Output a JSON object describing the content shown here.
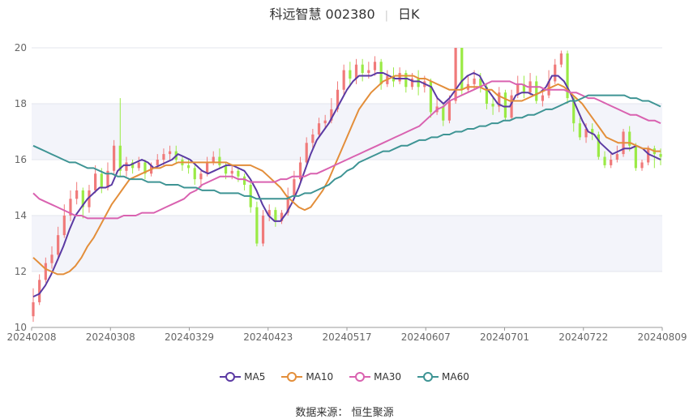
{
  "title": {
    "main": "科远智慧 002380",
    "period": "日K"
  },
  "source": {
    "label": "数据来源：",
    "value": "恒生聚源"
  },
  "colors": {
    "up": "#f07a7a",
    "down": "#9aea45",
    "MA5": "#5b3aa3",
    "MA10": "#e38e3a",
    "MA30": "#d962b0",
    "MA60": "#3e9494"
  },
  "chart_data": {
    "type": "candlestick",
    "ylim": [
      10,
      20
    ],
    "yticks": [
      10,
      12,
      14,
      16,
      18,
      20
    ],
    "xticks": [
      "20240208",
      "20240308",
      "20240329",
      "20240423",
      "20240517",
      "20240607",
      "20240701",
      "20240722",
      "20240809"
    ],
    "grid": true,
    "legend_position": "bottom",
    "candles": [
      [
        10.4,
        10.9,
        11.4,
        10.2
      ],
      [
        10.9,
        11.7,
        11.9,
        10.8
      ],
      [
        11.7,
        12.3,
        12.5,
        11.6
      ],
      [
        12.3,
        12.6,
        12.9,
        12.1
      ],
      [
        12.6,
        13.3,
        13.6,
        12.4
      ],
      [
        13.3,
        14.0,
        14.4,
        13.2
      ],
      [
        14.0,
        14.6,
        14.9,
        13.8
      ],
      [
        14.6,
        14.9,
        15.2,
        14.4
      ],
      [
        14.9,
        14.3,
        15.0,
        13.9
      ],
      [
        14.3,
        14.9,
        15.1,
        14.1
      ],
      [
        14.9,
        15.5,
        15.8,
        14.8
      ],
      [
        15.5,
        15.0,
        15.7,
        14.8
      ],
      [
        15.0,
        15.6,
        15.9,
        14.9
      ],
      [
        15.6,
        16.5,
        16.7,
        15.5
      ],
      [
        16.5,
        15.6,
        18.2,
        15.4
      ],
      [
        15.6,
        15.9,
        16.1,
        15.4
      ],
      [
        15.9,
        15.7,
        16.0,
        15.5
      ],
      [
        15.7,
        15.9,
        16.1,
        15.6
      ],
      [
        15.9,
        15.5,
        16.0,
        15.3
      ],
      [
        15.5,
        15.8,
        15.9,
        15.4
      ],
      [
        15.8,
        16.0,
        16.2,
        15.7
      ],
      [
        16.0,
        16.2,
        16.4,
        15.8
      ],
      [
        16.2,
        16.3,
        16.5,
        16.0
      ],
      [
        16.3,
        16.0,
        16.5,
        15.9
      ],
      [
        16.0,
        15.8,
        16.1,
        15.6
      ],
      [
        15.8,
        15.7,
        16.0,
        15.5
      ],
      [
        15.7,
        15.3,
        15.8,
        15.1
      ],
      [
        15.3,
        15.5,
        15.6,
        15.0
      ],
      [
        15.5,
        15.9,
        16.1,
        15.4
      ],
      [
        15.9,
        16.1,
        16.3,
        15.8
      ],
      [
        16.1,
        15.8,
        16.4,
        15.7
      ],
      [
        15.8,
        15.5,
        15.9,
        15.3
      ],
      [
        15.5,
        15.6,
        15.8,
        15.3
      ],
      [
        15.6,
        15.4,
        15.7,
        15.2
      ],
      [
        15.4,
        15.1,
        15.5,
        14.9
      ],
      [
        15.1,
        14.3,
        15.2,
        14.1
      ],
      [
        14.3,
        13.0,
        14.5,
        12.9
      ],
      [
        13.0,
        14.0,
        14.2,
        12.9
      ],
      [
        14.0,
        14.2,
        14.4,
        13.8
      ],
      [
        14.2,
        13.8,
        14.3,
        13.6
      ],
      [
        13.8,
        14.1,
        14.2,
        13.7
      ],
      [
        14.1,
        14.7,
        15.0,
        14.0
      ],
      [
        14.7,
        15.3,
        15.6,
        14.6
      ],
      [
        15.3,
        15.9,
        16.1,
        15.2
      ],
      [
        15.9,
        16.6,
        16.8,
        15.8
      ],
      [
        16.6,
        16.9,
        17.1,
        16.4
      ],
      [
        16.9,
        17.3,
        17.5,
        16.8
      ],
      [
        17.3,
        17.4,
        17.6,
        17.1
      ],
      [
        17.4,
        17.8,
        18.2,
        17.3
      ],
      [
        17.8,
        18.5,
        18.8,
        17.7
      ],
      [
        18.5,
        19.2,
        19.4,
        18.3
      ],
      [
        19.2,
        18.9,
        19.5,
        18.6
      ],
      [
        18.9,
        19.4,
        19.6,
        18.7
      ],
      [
        19.4,
        19.1,
        19.6,
        18.8
      ],
      [
        19.1,
        19.2,
        19.5,
        18.9
      ],
      [
        19.2,
        19.5,
        19.7,
        19.0
      ],
      [
        19.5,
        18.7,
        19.6,
        18.5
      ],
      [
        18.7,
        19.0,
        19.2,
        18.6
      ],
      [
        19.0,
        18.8,
        19.3,
        18.6
      ],
      [
        18.8,
        19.1,
        19.3,
        18.7
      ],
      [
        19.1,
        18.6,
        19.2,
        18.4
      ],
      [
        18.6,
        18.9,
        19.1,
        18.5
      ],
      [
        18.9,
        18.6,
        19.2,
        18.3
      ],
      [
        18.6,
        18.8,
        19.0,
        18.4
      ],
      [
        18.8,
        17.7,
        18.9,
        17.5
      ],
      [
        17.7,
        17.9,
        18.2,
        17.6
      ],
      [
        17.9,
        17.4,
        18.0,
        17.2
      ],
      [
        17.4,
        18.1,
        18.3,
        17.3
      ],
      [
        18.1,
        20.0,
        20.0,
        18.0
      ],
      [
        20.0,
        18.5,
        20.0,
        18.3
      ],
      [
        18.5,
        18.7,
        19.0,
        18.4
      ],
      [
        18.7,
        18.9,
        19.2,
        18.5
      ],
      [
        18.9,
        18.6,
        19.1,
        18.4
      ],
      [
        18.6,
        18.0,
        18.7,
        17.8
      ],
      [
        18.0,
        17.9,
        18.2,
        17.6
      ],
      [
        17.9,
        18.4,
        18.6,
        17.7
      ],
      [
        18.4,
        17.5,
        18.5,
        17.4
      ],
      [
        17.5,
        18.3,
        18.5,
        17.4
      ],
      [
        18.3,
        18.7,
        19.0,
        18.2
      ],
      [
        18.7,
        18.4,
        19.0,
        18.2
      ],
      [
        18.4,
        18.8,
        19.1,
        18.3
      ],
      [
        18.8,
        18.1,
        19.0,
        18.0
      ],
      [
        18.1,
        18.3,
        18.5,
        17.9
      ],
      [
        18.3,
        18.8,
        19.2,
        18.2
      ],
      [
        18.8,
        19.4,
        19.6,
        18.7
      ],
      [
        19.4,
        19.8,
        19.9,
        19.3
      ],
      [
        19.8,
        18.2,
        19.9,
        18.0
      ],
      [
        18.2,
        17.3,
        18.3,
        17.0
      ],
      [
        17.3,
        16.8,
        17.5,
        16.7
      ],
      [
        16.8,
        17.1,
        17.3,
        16.6
      ],
      [
        17.1,
        16.9,
        17.3,
        16.7
      ],
      [
        16.9,
        16.1,
        17.0,
        16.0
      ],
      [
        16.1,
        15.8,
        16.3,
        15.7
      ],
      [
        15.8,
        16.0,
        16.2,
        15.7
      ],
      [
        16.0,
        16.2,
        16.5,
        15.9
      ],
      [
        16.2,
        17.0,
        17.1,
        16.1
      ],
      [
        17.0,
        16.5,
        17.2,
        16.3
      ],
      [
        16.5,
        15.7,
        16.6,
        15.6
      ],
      [
        15.7,
        15.9,
        16.0,
        15.6
      ],
      [
        15.9,
        16.4,
        16.5,
        15.8
      ],
      [
        16.4,
        16.2,
        16.5,
        15.7
      ],
      [
        16.2,
        16.1,
        16.4,
        15.8
      ]
    ],
    "series": [
      {
        "name": "MA5",
        "values": [
          11.1,
          11.2,
          11.5,
          11.9,
          12.4,
          12.9,
          13.5,
          14.0,
          14.3,
          14.6,
          14.8,
          15.0,
          15.0,
          15.1,
          15.6,
          15.8,
          15.8,
          15.9,
          16.0,
          15.9,
          15.7,
          15.8,
          15.9,
          16.0,
          16.2,
          16.1,
          16.0,
          15.8,
          15.6,
          15.5,
          15.6,
          15.7,
          15.8,
          15.8,
          15.7,
          15.6,
          15.3,
          14.9,
          14.4,
          14.0,
          13.8,
          13.8,
          14.1,
          14.5,
          15.0,
          15.6,
          16.2,
          16.7,
          17.0,
          17.3,
          17.7,
          18.1,
          18.5,
          18.8,
          19.0,
          19.0,
          19.0,
          19.1,
          19.1,
          19.0,
          18.9,
          18.9,
          18.9,
          18.8,
          18.8,
          18.7,
          18.6,
          18.2,
          18.0,
          18.2,
          18.5,
          18.8,
          19.0,
          19.1,
          19.0,
          18.6,
          18.3,
          18.0,
          17.9,
          17.9,
          18.3,
          18.4,
          18.4,
          18.3,
          18.4,
          18.6,
          19.0,
          19.0,
          18.8,
          18.4,
          17.9,
          17.4,
          17.0,
          16.9,
          16.6,
          16.4,
          16.2,
          16.3,
          16.4,
          16.4,
          16.5,
          16.4,
          16.2,
          16.1,
          16.0
        ]
      },
      {
        "name": "MA10",
        "values": [
          12.5,
          12.3,
          12.1,
          12.0,
          11.9,
          11.9,
          12.0,
          12.2,
          12.5,
          12.9,
          13.2,
          13.6,
          14.0,
          14.4,
          14.7,
          15.0,
          15.3,
          15.4,
          15.5,
          15.6,
          15.7,
          15.7,
          15.8,
          15.8,
          15.9,
          15.9,
          15.9,
          15.9,
          15.9,
          15.9,
          15.9,
          15.9,
          15.9,
          15.8,
          15.8,
          15.8,
          15.8,
          15.7,
          15.6,
          15.4,
          15.2,
          15.0,
          14.7,
          14.5,
          14.3,
          14.2,
          14.3,
          14.6,
          14.9,
          15.3,
          15.8,
          16.3,
          16.8,
          17.3,
          17.8,
          18.1,
          18.4,
          18.6,
          18.8,
          18.9,
          19.0,
          19.0,
          19.0,
          19.0,
          18.9,
          18.9,
          18.8,
          18.7,
          18.6,
          18.5,
          18.5,
          18.5,
          18.6,
          18.6,
          18.6,
          18.5,
          18.5,
          18.3,
          18.2,
          18.1,
          18.1,
          18.1,
          18.2,
          18.3,
          18.4,
          18.5,
          18.6,
          18.7,
          18.6,
          18.4,
          18.2,
          18.0,
          17.7,
          17.4,
          17.1,
          16.8,
          16.7,
          16.6,
          16.6,
          16.6,
          16.5,
          16.4,
          16.4,
          16.3,
          16.3
        ]
      },
      {
        "name": "MA30",
        "values": [
          14.8,
          14.6,
          14.5,
          14.4,
          14.3,
          14.2,
          14.1,
          14.0,
          14.0,
          13.9,
          13.9,
          13.9,
          13.9,
          13.9,
          13.9,
          14.0,
          14.0,
          14.0,
          14.1,
          14.1,
          14.1,
          14.2,
          14.3,
          14.4,
          14.5,
          14.6,
          14.8,
          14.9,
          15.1,
          15.2,
          15.3,
          15.4,
          15.4,
          15.4,
          15.3,
          15.3,
          15.2,
          15.2,
          15.2,
          15.2,
          15.2,
          15.3,
          15.3,
          15.4,
          15.4,
          15.4,
          15.5,
          15.5,
          15.6,
          15.7,
          15.8,
          15.9,
          16.0,
          16.1,
          16.2,
          16.3,
          16.4,
          16.5,
          16.6,
          16.7,
          16.8,
          16.9,
          17.0,
          17.1,
          17.2,
          17.4,
          17.6,
          17.8,
          17.9,
          18.1,
          18.2,
          18.3,
          18.4,
          18.5,
          18.6,
          18.7,
          18.8,
          18.8,
          18.8,
          18.8,
          18.7,
          18.7,
          18.6,
          18.6,
          18.6,
          18.5,
          18.5,
          18.5,
          18.5,
          18.4,
          18.4,
          18.3,
          18.2,
          18.2,
          18.1,
          18.0,
          17.9,
          17.8,
          17.7,
          17.6,
          17.6,
          17.5,
          17.4,
          17.4,
          17.3
        ]
      },
      {
        "name": "MA60",
        "values": [
          16.5,
          16.4,
          16.3,
          16.2,
          16.1,
          16.0,
          15.9,
          15.9,
          15.8,
          15.7,
          15.7,
          15.6,
          15.5,
          15.5,
          15.4,
          15.4,
          15.3,
          15.3,
          15.3,
          15.2,
          15.2,
          15.2,
          15.1,
          15.1,
          15.1,
          15.0,
          15.0,
          15.0,
          14.9,
          14.9,
          14.9,
          14.8,
          14.8,
          14.8,
          14.8,
          14.7,
          14.7,
          14.6,
          14.6,
          14.6,
          14.6,
          14.6,
          14.6,
          14.7,
          14.7,
          14.8,
          14.8,
          14.9,
          15.0,
          15.1,
          15.3,
          15.4,
          15.6,
          15.7,
          15.9,
          16.0,
          16.1,
          16.2,
          16.3,
          16.3,
          16.4,
          16.5,
          16.5,
          16.6,
          16.7,
          16.7,
          16.8,
          16.8,
          16.9,
          16.9,
          17.0,
          17.0,
          17.1,
          17.1,
          17.2,
          17.2,
          17.3,
          17.3,
          17.4,
          17.4,
          17.5,
          17.5,
          17.6,
          17.6,
          17.7,
          17.8,
          17.8,
          17.9,
          18.0,
          18.1,
          18.1,
          18.2,
          18.3,
          18.3,
          18.3,
          18.3,
          18.3,
          18.3,
          18.3,
          18.2,
          18.2,
          18.1,
          18.1,
          18.0,
          17.9
        ]
      }
    ]
  }
}
